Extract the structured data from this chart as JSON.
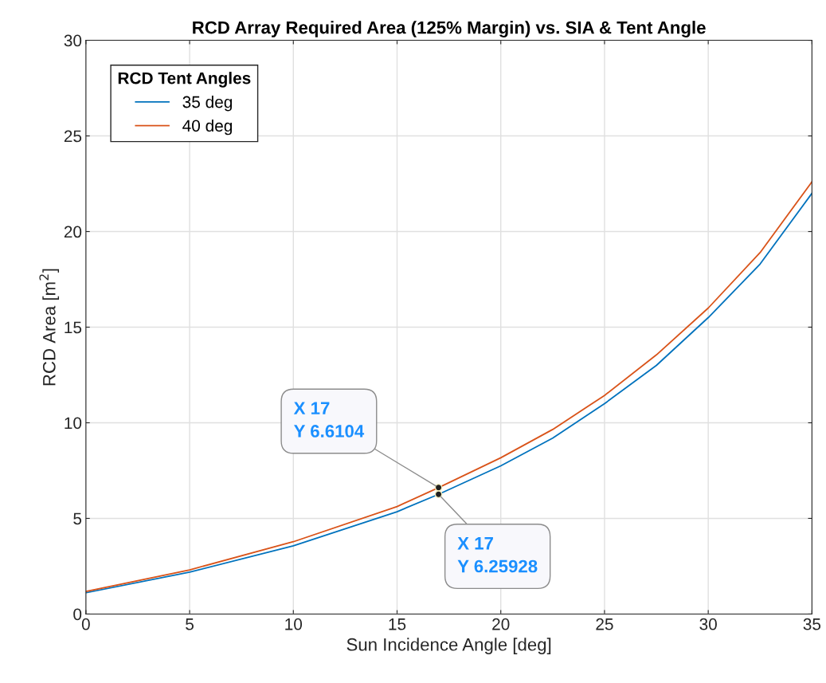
{
  "chart_data": {
    "type": "line",
    "title": "RCD Array Required Area (125% Margin) vs. SIA & Tent Angle",
    "xlabel": "Sun Incidence Angle [deg]",
    "ylabel": "RCD Area [m$^{2}$]",
    "legend_title": "RCD Tent Angles",
    "legend": "top left",
    "grid": true,
    "xlim": [
      0,
      35
    ],
    "xticks": [
      0,
      5,
      10,
      15,
      20,
      25,
      30,
      35
    ],
    "ylim": [
      0,
      30
    ],
    "yticks": [
      0,
      5,
      10,
      15,
      20,
      25,
      30
    ],
    "x": [
      0,
      5,
      10,
      15,
      17,
      20,
      22.5,
      25,
      27.5,
      30,
      32.5,
      35
    ],
    "series": [
      {
        "name": "35 deg",
        "color": "#0072bd",
        "values": [
          1.11,
          2.19,
          3.57,
          5.35,
          6.25928,
          7.75,
          9.2,
          11.0,
          13.0,
          15.5,
          18.3,
          22.0
        ]
      },
      {
        "name": "40 deg",
        "color": "#d95319",
        "values": [
          1.18,
          2.31,
          3.78,
          5.62,
          6.6104,
          8.17,
          9.65,
          11.43,
          13.55,
          16.0,
          18.9,
          22.6
        ]
      }
    ],
    "annotations": [
      {
        "text": "X 17\nY 6.6104",
        "x": 17,
        "y": 6.6104
      },
      {
        "text": "X 17\nY 6.25928",
        "x": 17,
        "y": 6.25928
      }
    ]
  }
}
